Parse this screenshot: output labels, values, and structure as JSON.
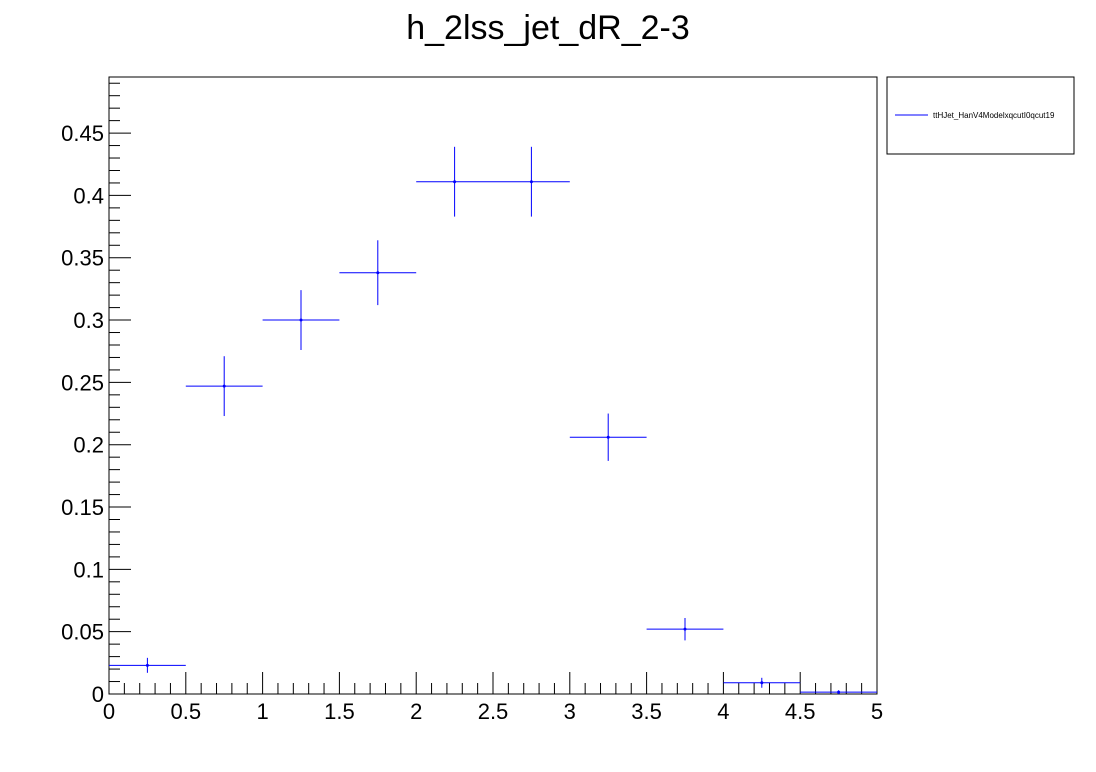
{
  "chart_data": {
    "type": "scatter",
    "title": "h_2lss_jet_dR_2-3",
    "xlabel": "",
    "ylabel": "",
    "xlim": [
      0,
      5
    ],
    "ylim": [
      0,
      0.495
    ],
    "x_ticks": [
      "0",
      "0.5",
      "1",
      "1.5",
      "2",
      "2.5",
      "3",
      "3.5",
      "4",
      "4.5",
      "5"
    ],
    "y_ticks": [
      "0",
      "0.05",
      "0.1",
      "0.15",
      "0.2",
      "0.25",
      "0.3",
      "0.35",
      "0.4",
      "0.45"
    ],
    "grid": false,
    "legend_position": "top-right outside plot",
    "series": [
      {
        "name": "ttHJet_HanV4ModelxqcutI0qcut19",
        "color": "#0000ff",
        "bins": [
          {
            "x_low": 0.0,
            "x_high": 0.5,
            "x": 0.25,
            "y": 0.023,
            "err": 0.006
          },
          {
            "x_low": 0.5,
            "x_high": 1.0,
            "x": 0.75,
            "y": 0.247,
            "err": 0.024
          },
          {
            "x_low": 1.0,
            "x_high": 1.5,
            "x": 1.25,
            "y": 0.3,
            "err": 0.024
          },
          {
            "x_low": 1.5,
            "x_high": 2.0,
            "x": 1.75,
            "y": 0.338,
            "err": 0.026
          },
          {
            "x_low": 2.0,
            "x_high": 2.5,
            "x": 2.25,
            "y": 0.411,
            "err": 0.028
          },
          {
            "x_low": 2.5,
            "x_high": 3.0,
            "x": 2.75,
            "y": 0.411,
            "err": 0.028
          },
          {
            "x_low": 3.0,
            "x_high": 3.5,
            "x": 3.25,
            "y": 0.206,
            "err": 0.019
          },
          {
            "x_low": 3.5,
            "x_high": 4.0,
            "x": 3.75,
            "y": 0.052,
            "err": 0.009
          },
          {
            "x_low": 4.0,
            "x_high": 4.5,
            "x": 4.25,
            "y": 0.009,
            "err": 0.004
          },
          {
            "x_low": 4.5,
            "x_high": 5.0,
            "x": 4.75,
            "y": 0.0015,
            "err": 0.0015
          }
        ]
      }
    ]
  }
}
